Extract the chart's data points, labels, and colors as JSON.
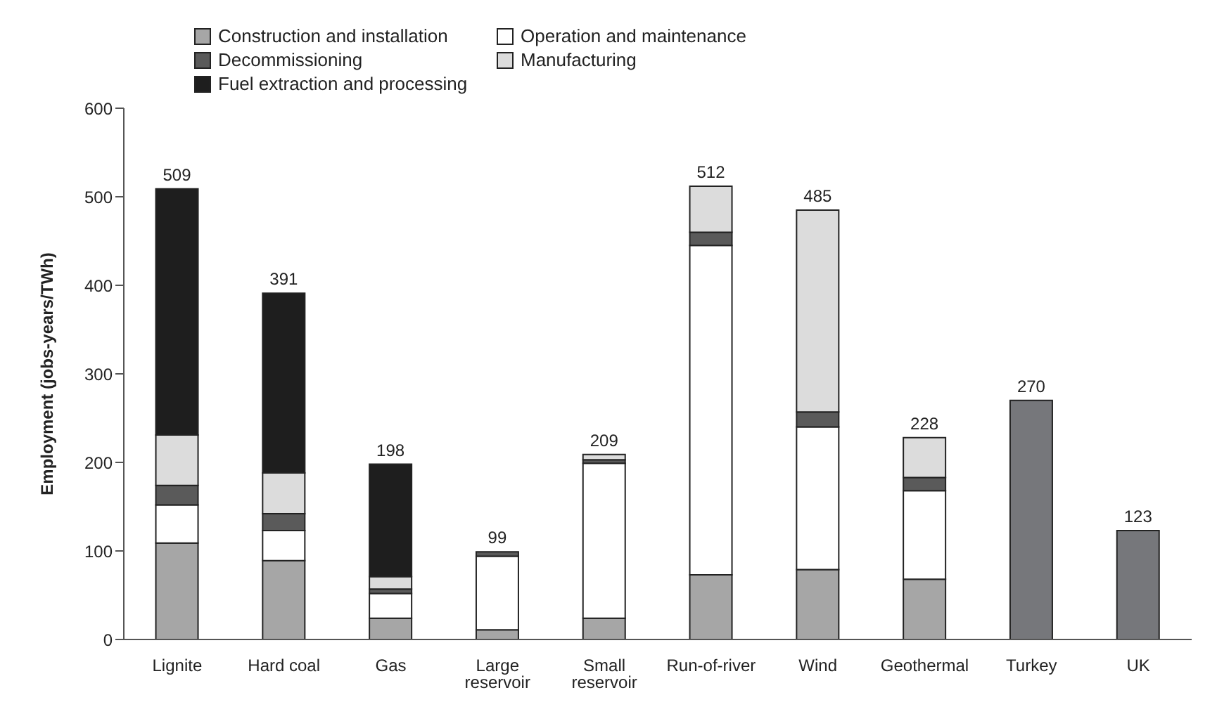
{
  "chart_data": {
    "type": "bar",
    "stacked": true,
    "ylabel": "Employment (jobs-years/TWh)",
    "categories": [
      "Lignite",
      "Hard coal",
      "Gas",
      "Large reservoir",
      "Small reservoir",
      "Run-of-river",
      "Wind",
      "Geothermal",
      "Turkey",
      "UK"
    ],
    "series": [
      {
        "name": "Construction and installation",
        "color": "#a6a6a6",
        "values": [
          109,
          89,
          24,
          11,
          24,
          73,
          79,
          68,
          null,
          null
        ]
      },
      {
        "name": "Operation and maintenance",
        "color": "#ffffff",
        "values": [
          43,
          34,
          28,
          83,
          175,
          372,
          161,
          100,
          null,
          null
        ]
      },
      {
        "name": "Decommissioning",
        "color": "#5a5a5a",
        "values": [
          22,
          19,
          5,
          5,
          4,
          15,
          17,
          15,
          null,
          null
        ]
      },
      {
        "name": "Manufacturing",
        "color": "#dcdcdc",
        "values": [
          57,
          46,
          14,
          null,
          6,
          52,
          228,
          45,
          null,
          null
        ]
      },
      {
        "name": "Fuel extraction and processing",
        "color": "#1e1e1e",
        "values": [
          278,
          203,
          127,
          null,
          null,
          null,
          null,
          null,
          null,
          null
        ]
      },
      {
        "color": "#76777b",
        "values": [
          null,
          null,
          null,
          null,
          null,
          null,
          null,
          null,
          270,
          123
        ]
      }
    ],
    "totals": [
      "509",
      "391",
      "198",
      "99",
      "209",
      "512",
      "485",
      "228",
      "270",
      "123"
    ],
    "ylim": [
      0,
      600
    ],
    "yticks": [
      0,
      100,
      200,
      300,
      400,
      500,
      600
    ],
    "grid": false,
    "legend": "top"
  }
}
